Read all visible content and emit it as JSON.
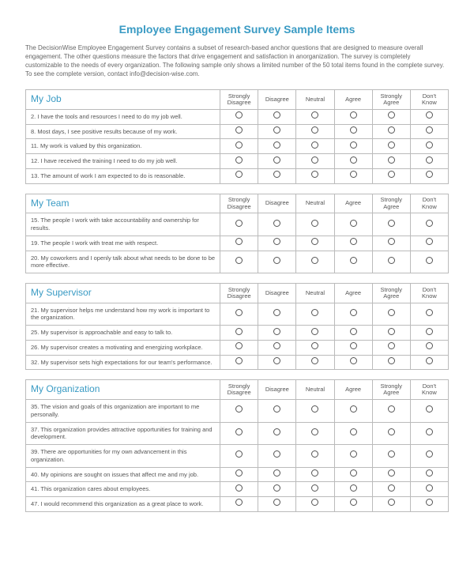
{
  "title": "Employee Engagement Survey Sample Items",
  "intro": "The DecisionWise Employee Engagement Survey contains a subset of research-based anchor questions that are designed to measure overall engagement. The other questions measure the factors that drive engagement and satisfaction in anorganization. The survey is completely customizable to the needs of every organization. The following sample only shows a limited number of the 50 total items found in the complete survey. To see the complete version, contact info@decision-wise.com.",
  "scale": [
    "Strongly Disagree",
    "Disagree",
    "Neutral",
    "Agree",
    "Strongly Agree",
    "Don't Know"
  ],
  "colors": {
    "accent": "#3a9bc4",
    "text": "#555555",
    "border": "#bbbbbb",
    "background": "#ffffff"
  },
  "sections": [
    {
      "name": "My Job",
      "items": [
        "2. I have the tools and resources I need to do my job well.",
        "8. Most days, I see positive results because of my work.",
        "11. My work is valued by this organization.",
        "12. I have received the training I need to do my job well.",
        "13. The amount of work I am expected to do is reasonable."
      ]
    },
    {
      "name": "My Team",
      "items": [
        "15. The people I work with take accountability and ownership for results.",
        "19. The people I work with treat me with respect.",
        "20. My coworkers and I openly talk about what needs to be done to be more effective."
      ]
    },
    {
      "name": "My Supervisor",
      "items": [
        "21. My supervisor helps me understand how my work is important to the organization.",
        "25. My supervisor is approachable and easy to talk to.",
        "26. My supervisor creates a motivating and energizing workplace.",
        "32. My supervisor sets high expectations for our team's performance."
      ]
    },
    {
      "name": "My Organization",
      "items": [
        "35. The vision and goals of this organization are important to me personally.",
        "37. This organization provides attractive opportunities for training and development.",
        "39. There are opportunities for my own advancement in this organization.",
        "40. My opinions are sought on issues that affect me and my job.",
        "41. This organization cares about employees.",
        "47. I would recommend this organization as a great place to work."
      ]
    }
  ]
}
